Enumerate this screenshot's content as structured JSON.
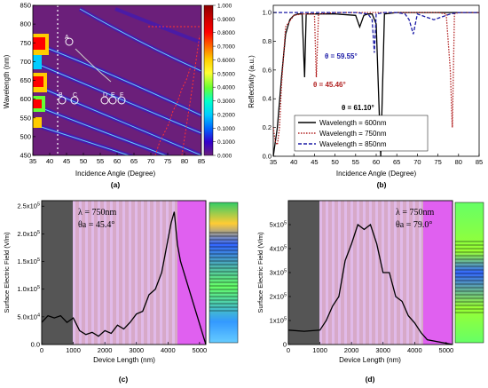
{
  "panels": {
    "a": {
      "caption": "(a)"
    },
    "b": {
      "caption": "(b)"
    },
    "c": {
      "caption": "(c)"
    },
    "d": {
      "caption": "(d)"
    }
  },
  "chart_data": [
    {
      "id": "a",
      "type": "heatmap",
      "title": "",
      "xlabel": "Incidence Angle (Degree)",
      "ylabel": "Wavelength (nm)",
      "xlim": [
        35,
        85
      ],
      "ylim": [
        450,
        850
      ],
      "xticks": [
        35,
        40,
        45,
        50,
        55,
        60,
        65,
        70,
        75,
        80,
        85
      ],
      "yticks": [
        450,
        500,
        550,
        600,
        650,
        700,
        750,
        800,
        850
      ],
      "colorbar": {
        "ticks": [
          "1.000",
          "0.9000",
          "0.8000",
          "0.7000",
          "0.6000",
          "0.5000",
          "0.4000",
          "0.3000",
          "0.2000",
          "0.1000",
          "0.1000",
          "0.000"
        ],
        "colors": [
          "#8b0000",
          "#cc0000",
          "#ff0000",
          "#ff6600",
          "#ffcc00",
          "#ffff33",
          "#66ff33",
          "#00ffcc",
          "#00ccff",
          "#0066ff",
          "#3300cc",
          "#6b1f7a"
        ]
      },
      "annotations": [
        "A",
        "B",
        "C",
        "D",
        "E",
        "F"
      ]
    },
    {
      "id": "b",
      "type": "line",
      "xlabel": "Incidence Angle (Degree)",
      "ylabel": "Reflectivity (a.u.)",
      "xlim": [
        35,
        85
      ],
      "ylim": [
        0,
        1.05
      ],
      "xticks": [
        35,
        40,
        45,
        50,
        55,
        60,
        65,
        70,
        75,
        80,
        85
      ],
      "yticks": [
        "0.0",
        "0.2",
        "0.4",
        "0.6",
        "0.8",
        "1.0"
      ],
      "series": [
        {
          "name": "Wavelength = 600nm",
          "color": "#000000",
          "dash": "solid",
          "x": [
            35,
            36,
            37,
            38,
            39,
            40,
            41,
            42,
            42.6,
            43,
            43.6,
            45,
            50,
            55,
            56,
            57,
            58,
            59,
            60,
            61.1,
            62,
            65,
            70,
            75,
            80,
            85
          ],
          "y": [
            0.0,
            0.2,
            0.55,
            0.85,
            0.95,
            0.98,
            0.99,
            0.99,
            0.55,
            0.99,
            0.99,
            0.99,
            0.99,
            0.98,
            0.9,
            0.98,
            0.99,
            0.99,
            0.92,
            0.0,
            0.99,
            1.0,
            1.0,
            1.0,
            1.0,
            1.0
          ]
        },
        {
          "name": "Wavelength = 750nm",
          "color": "#b22222",
          "dash": "dot",
          "x": [
            35,
            35.5,
            36,
            36.5,
            37,
            38,
            40,
            42,
            44,
            45,
            45.46,
            46,
            50,
            60,
            70,
            75,
            77,
            78,
            78.5,
            79,
            80,
            85
          ],
          "y": [
            0.2,
            0.1,
            0.08,
            0.2,
            0.5,
            0.9,
            0.98,
            0.99,
            0.99,
            0.99,
            0.55,
            0.99,
            1.0,
            1.0,
            1.0,
            1.0,
            0.99,
            0.6,
            0.2,
            0.99,
            1.0,
            1.0
          ]
        },
        {
          "name": "Wavelength = 850nm",
          "color": "#1a1aa6",
          "dash": "dash",
          "x": [
            35,
            45,
            50,
            55,
            58,
            59,
            59.55,
            60,
            62,
            65,
            67,
            68,
            69,
            70,
            72,
            74,
            76,
            78,
            80,
            85
          ],
          "y": [
            1.0,
            1.0,
            1.0,
            1.0,
            0.99,
            0.95,
            0.72,
            0.99,
            1.0,
            1.0,
            0.99,
            0.95,
            0.85,
            0.99,
            0.97,
            0.95,
            0.97,
            0.99,
            1.0,
            1.0
          ]
        }
      ],
      "annotations": [
        "θ = 59.55°",
        "θ = 45.46°",
        "θ = 61.10°"
      ]
    },
    {
      "id": "c",
      "type": "line",
      "xlabel": "Device Length (nm)",
      "ylabel": "Surface Electric Field (V/m)",
      "xlim": [
        0,
        5200
      ],
      "ylim": [
        0,
        260000
      ],
      "xticks": [
        "0",
        "1000",
        "2000",
        "3000",
        "4000",
        "5000"
      ],
      "yticks": [
        "0.0",
        "5.0x10^4",
        "1.0x10^5",
        "1.5x10^5",
        "2.0x10^5",
        "2.5x10^5"
      ],
      "annotations": [
        "λ = 750nm",
        "θa = 45.4°"
      ],
      "series": [
        {
          "name": "",
          "color": "#000000",
          "x": [
            0,
            200,
            400,
            600,
            800,
            1000,
            1200,
            1400,
            1600,
            1800,
            2000,
            2200,
            2400,
            2600,
            2800,
            3000,
            3200,
            3400,
            3600,
            3800,
            3900,
            4000,
            4100,
            4200,
            4300,
            4400,
            5200
          ],
          "y": [
            40000,
            52000,
            48000,
            52000,
            40000,
            48000,
            25000,
            18000,
            22000,
            15000,
            25000,
            20000,
            35000,
            28000,
            40000,
            55000,
            60000,
            90000,
            100000,
            130000,
            160000,
            190000,
            220000,
            240000,
            180000,
            150000,
            0
          ]
        }
      ]
    },
    {
      "id": "d",
      "type": "line",
      "xlabel": "Device Length (nm)",
      "ylabel": "Surface Electric Field (V/m)",
      "xlim": [
        0,
        5200
      ],
      "ylim": [
        0,
        600000
      ],
      "xticks": [
        "0",
        "1000",
        "2000",
        "3000",
        "4000",
        "5000"
      ],
      "yticks": [
        "0",
        "1x10^5",
        "2x10^5",
        "3x10^5",
        "4x10^5",
        "5x10^5"
      ],
      "annotations": [
        "λ = 750nm",
        "θa = 79.0°"
      ],
      "series": [
        {
          "name": "",
          "color": "#000000",
          "x": [
            0,
            500,
            1000,
            1200,
            1400,
            1600,
            1800,
            2000,
            2200,
            2400,
            2600,
            2800,
            3000,
            3200,
            3400,
            3600,
            3800,
            4000,
            4200,
            4400,
            5200
          ],
          "y": [
            60000,
            55000,
            60000,
            100000,
            160000,
            200000,
            350000,
            420000,
            500000,
            480000,
            500000,
            420000,
            300000,
            300000,
            200000,
            180000,
            120000,
            90000,
            50000,
            20000,
            0
          ]
        }
      ]
    }
  ]
}
